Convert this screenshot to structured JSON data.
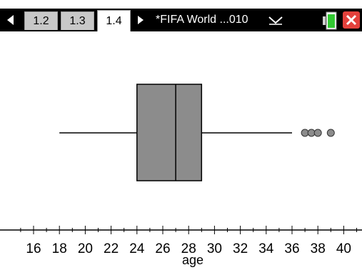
{
  "tabs": [
    {
      "label": "1.2",
      "active": false
    },
    {
      "label": "1.3",
      "active": false
    },
    {
      "label": "1.4",
      "active": true
    }
  ],
  "document_title": "*FIFA World ...010",
  "icons": {
    "prev": "left-arrow-icon",
    "next": "right-arrow-icon",
    "menu": "chevron-down-icon",
    "battery": "battery-icon",
    "close": "close-icon"
  },
  "colors": {
    "box_fill": "#8c8c8c",
    "outlier_fill": "#8c8c8c",
    "line": "#000000",
    "close": "#e3413c",
    "battery": "#32c832"
  },
  "chart_data": {
    "type": "boxplot",
    "xlabel": "age",
    "xlim": [
      15,
      41
    ],
    "ticks": [
      16,
      18,
      20,
      22,
      24,
      26,
      28,
      30,
      32,
      34,
      36,
      38,
      40
    ],
    "whisker_low": 18,
    "q1": 24,
    "median": 27,
    "q3": 29,
    "whisker_high": 36,
    "outliers": [
      37,
      37.5,
      38,
      39
    ]
  }
}
